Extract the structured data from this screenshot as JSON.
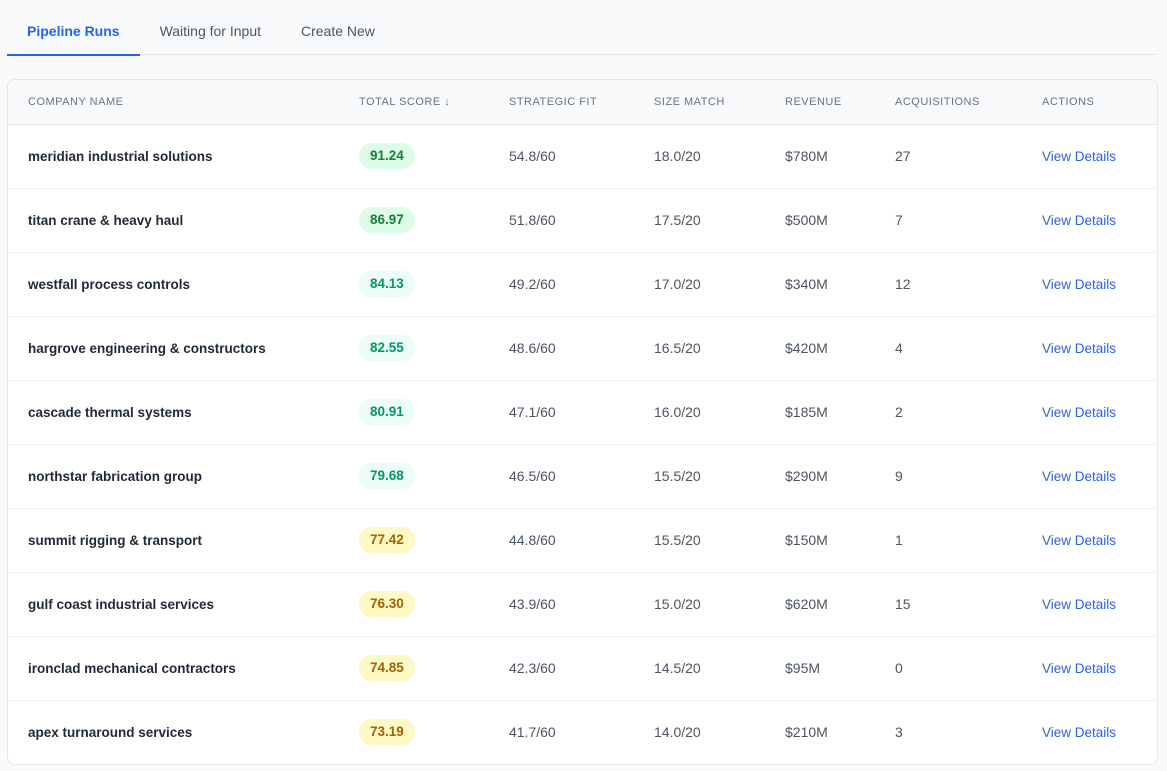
{
  "tabs": [
    {
      "label": "Pipeline Runs",
      "active": true
    },
    {
      "label": "Waiting for Input",
      "active": false
    },
    {
      "label": "Create New",
      "active": false
    }
  ],
  "table": {
    "headers": {
      "company": "Company Name",
      "score": "Total Score ↓",
      "fit": "Strategic Fit",
      "size": "Size Match",
      "revenue": "Revenue",
      "acquisitions": "Acquisitions",
      "actions": "Actions"
    },
    "action_label": "View Details",
    "rows": [
      {
        "company": "meridian industrial solutions",
        "score": "91.24",
        "tier": "high",
        "fit": "54.8/60",
        "size": "18.0/20",
        "revenue": "$780M",
        "acquisitions": "27"
      },
      {
        "company": "titan crane & heavy haul",
        "score": "86.97",
        "tier": "high",
        "fit": "51.8/60",
        "size": "17.5/20",
        "revenue": "$500M",
        "acquisitions": "7"
      },
      {
        "company": "westfall process controls",
        "score": "84.13",
        "tier": "mid",
        "fit": "49.2/60",
        "size": "17.0/20",
        "revenue": "$340M",
        "acquisitions": "12"
      },
      {
        "company": "hargrove engineering & constructors",
        "score": "82.55",
        "tier": "mid",
        "fit": "48.6/60",
        "size": "16.5/20",
        "revenue": "$420M",
        "acquisitions": "4"
      },
      {
        "company": "cascade thermal systems",
        "score": "80.91",
        "tier": "mid",
        "fit": "47.1/60",
        "size": "16.0/20",
        "revenue": "$185M",
        "acquisitions": "2"
      },
      {
        "company": "northstar fabrication group",
        "score": "79.68",
        "tier": "mid",
        "fit": "46.5/60",
        "size": "15.5/20",
        "revenue": "$290M",
        "acquisitions": "9"
      },
      {
        "company": "summit rigging & transport",
        "score": "77.42",
        "tier": "warn",
        "fit": "44.8/60",
        "size": "15.5/20",
        "revenue": "$150M",
        "acquisitions": "1"
      },
      {
        "company": "gulf coast industrial services",
        "score": "76.30",
        "tier": "warn",
        "fit": "43.9/60",
        "size": "15.0/20",
        "revenue": "$620M",
        "acquisitions": "15"
      },
      {
        "company": "ironclad mechanical contractors",
        "score": "74.85",
        "tier": "warn",
        "fit": "42.3/60",
        "size": "14.5/20",
        "revenue": "$95M",
        "acquisitions": "0"
      },
      {
        "company": "apex turnaround services",
        "score": "73.19",
        "tier": "warn",
        "fit": "41.7/60",
        "size": "14.0/20",
        "revenue": "$210M",
        "acquisitions": "3"
      }
    ]
  },
  "colors": {
    "accent": "#2563eb",
    "score_high_bg": "#dcfce7",
    "score_mid_bg": "#ecfdf5",
    "score_warn_bg": "#fef9c3"
  }
}
